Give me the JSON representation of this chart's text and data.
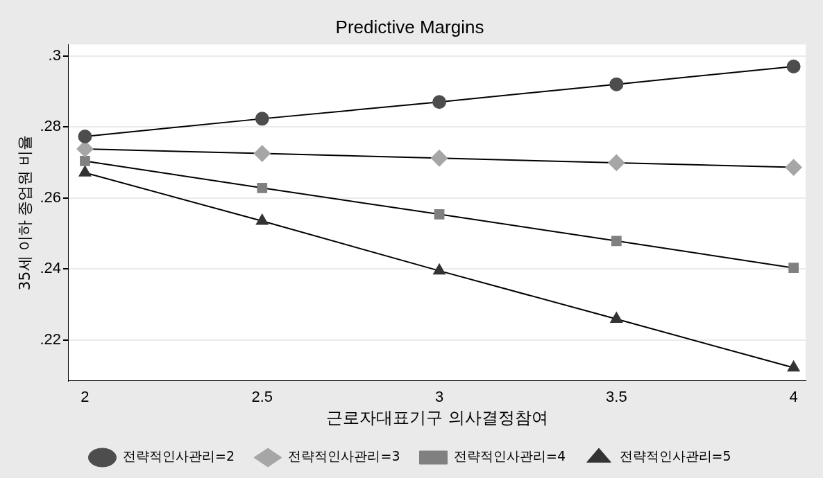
{
  "chart_data": {
    "type": "line",
    "title": "Predictive Margins",
    "xlabel": "근로자대표기구 의사결정참여",
    "ylabel": "35세 이하 종업원 비율",
    "x": [
      2,
      2.5,
      3,
      3.5,
      4
    ],
    "series": [
      {
        "name": "전략적인사관리=2",
        "color": "#4d4d4d",
        "marker": "circle",
        "values": [
          0.2773,
          0.2823,
          0.287,
          0.292,
          0.297
        ]
      },
      {
        "name": "전략적인사관리=3",
        "color": "#a6a6a6",
        "marker": "diamond",
        "values": [
          0.2738,
          0.2725,
          0.2712,
          0.2699,
          0.2686
        ]
      },
      {
        "name": "전략적인사관리=4",
        "color": "#808080",
        "marker": "square",
        "values": [
          0.2704,
          0.2628,
          0.2554,
          0.2479,
          0.2403
        ]
      },
      {
        "name": "전략적인사관리=5",
        "color": "#333333",
        "marker": "triangle",
        "values": [
          0.2671,
          0.2535,
          0.2395,
          0.2259,
          0.2122
        ]
      }
    ],
    "xlim": [
      1.954,
      4.034
    ],
    "xticks": [
      2,
      2.5,
      3,
      3.5,
      4
    ],
    "ylim": [
      0.2085,
      0.3032
    ],
    "yticks": [
      {
        "value": 0.22,
        "label": ".22"
      },
      {
        "value": 0.24,
        "label": ".24"
      },
      {
        "value": 0.26,
        "label": ".26"
      },
      {
        "value": 0.28,
        "label": ".28"
      },
      {
        "value": 0.3,
        "label": ".3"
      }
    ],
    "grid": "y",
    "legend": "bottom",
    "line_style": "solid"
  }
}
